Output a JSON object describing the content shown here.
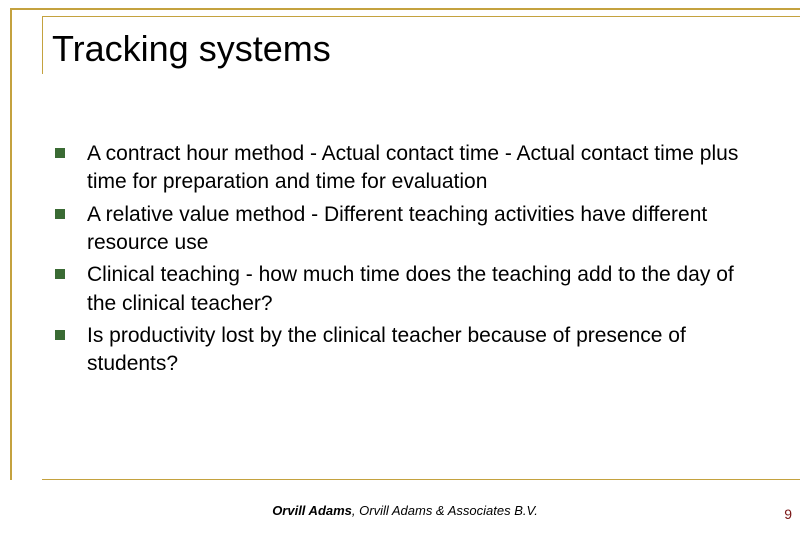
{
  "title": "Tracking systems",
  "bullets": [
    "A contract hour method  - Actual contact time - Actual contact time plus time for preparation and time for evaluation",
    "A relative value method - Different teaching activities have different resource use",
    "Clinical teaching  - how much time does the teaching add to the day of the clinical teacher?",
    "Is productivity lost by the clinical teacher because of presence of students?"
  ],
  "footer": {
    "author_bold": "Orvill Adams",
    "author_rest": ", Orvill Adams & Associates B.V."
  },
  "page_number": "9",
  "colors": {
    "accent_border": "#c4a23f",
    "bullet_marker": "#3a6b34",
    "page_number": "#7a1616",
    "background": "#ffffff",
    "text": "#000000"
  },
  "typography": {
    "title_fontsize": 36,
    "bullet_fontsize": 21,
    "footer_fontsize": 13,
    "page_number_fontsize": 14
  }
}
